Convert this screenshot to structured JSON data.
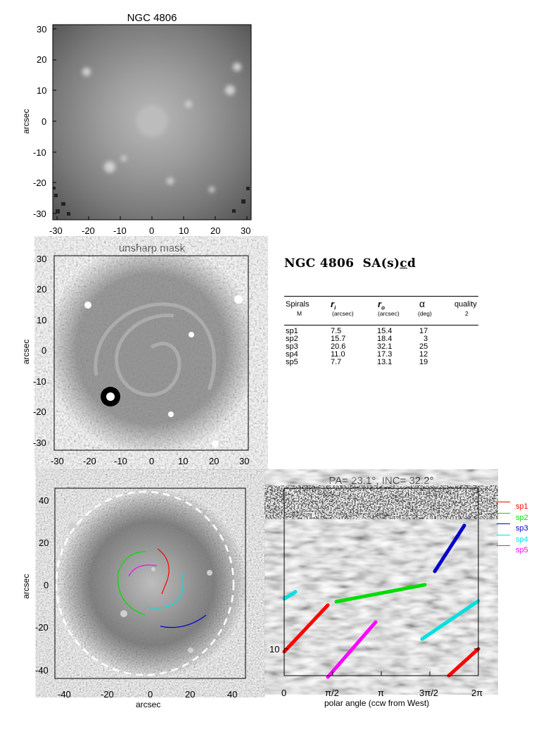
{
  "panel1": {
    "title": "NGC 4806",
    "ylabel": "arcsec",
    "xticks": [
      "-30",
      "-20",
      "-10",
      "0",
      "10",
      "20",
      "30"
    ],
    "yticks": [
      "30",
      "20",
      "10",
      "0",
      "-10",
      "-20",
      "-30"
    ]
  },
  "panel2": {
    "title": "unsharp mask",
    "ylabel": "arcsec",
    "xticks": [
      "-30",
      "-20",
      "-10",
      "0",
      "10",
      "20",
      "30"
    ],
    "yticks": [
      "30",
      "20",
      "10",
      "0",
      "-10",
      "-20",
      "-30"
    ]
  },
  "panel3": {
    "ylabel": "arcsec",
    "xlabel": "arcsec",
    "xticks": [
      "-40",
      "-20",
      "0",
      "20",
      "40"
    ],
    "yticks": [
      "40",
      "20",
      "0",
      "-20",
      "-40"
    ]
  },
  "panel4": {
    "title": "PA= 23.1°, INC= 32.2°",
    "xlabel": "polar angle (ccw from West)",
    "xticks": [
      "0",
      "π/2",
      "π",
      "3π/2",
      "2π"
    ],
    "ytick": "10"
  },
  "galaxy": {
    "name": "NGC 4806",
    "type_prefix": "SA(s)",
    "type_underlined": "c",
    "type_suffix": "d"
  },
  "table": {
    "headers": {
      "spirals": "Spirals",
      "m": "M",
      "ri": "r",
      "ri_sub": "i",
      "ri_unit": "(arcsec)",
      "ro": "r",
      "ro_sub": "o",
      "ro_unit": "(arcsec)",
      "alpha": "α",
      "alpha_unit": "(deg)",
      "quality": "quality",
      "quality_value": "2"
    },
    "rows": [
      {
        "name": "sp1",
        "ri": "7.5",
        "ro": "15.4",
        "alpha": "17"
      },
      {
        "name": "sp2",
        "ri": "15.7",
        "ro": "18.4",
        "alpha": "3"
      },
      {
        "name": "sp3",
        "ri": "20.6",
        "ro": "32.1",
        "alpha": "25"
      },
      {
        "name": "sp4",
        "ri": "11.0",
        "ro": "17.3",
        "alpha": "12"
      },
      {
        "name": "sp5",
        "ri": "7.7",
        "ro": "13.1",
        "alpha": "19"
      }
    ]
  },
  "legend": [
    {
      "label": "sp1",
      "color": "#ff0000"
    },
    {
      "label": "sp2",
      "color": "#00dd00"
    },
    {
      "label": "sp3",
      "color": "#0000cc"
    },
    {
      "label": "sp4",
      "color": "#00e0e0"
    },
    {
      "label": "sp5",
      "color": "#ff00ff"
    }
  ]
}
